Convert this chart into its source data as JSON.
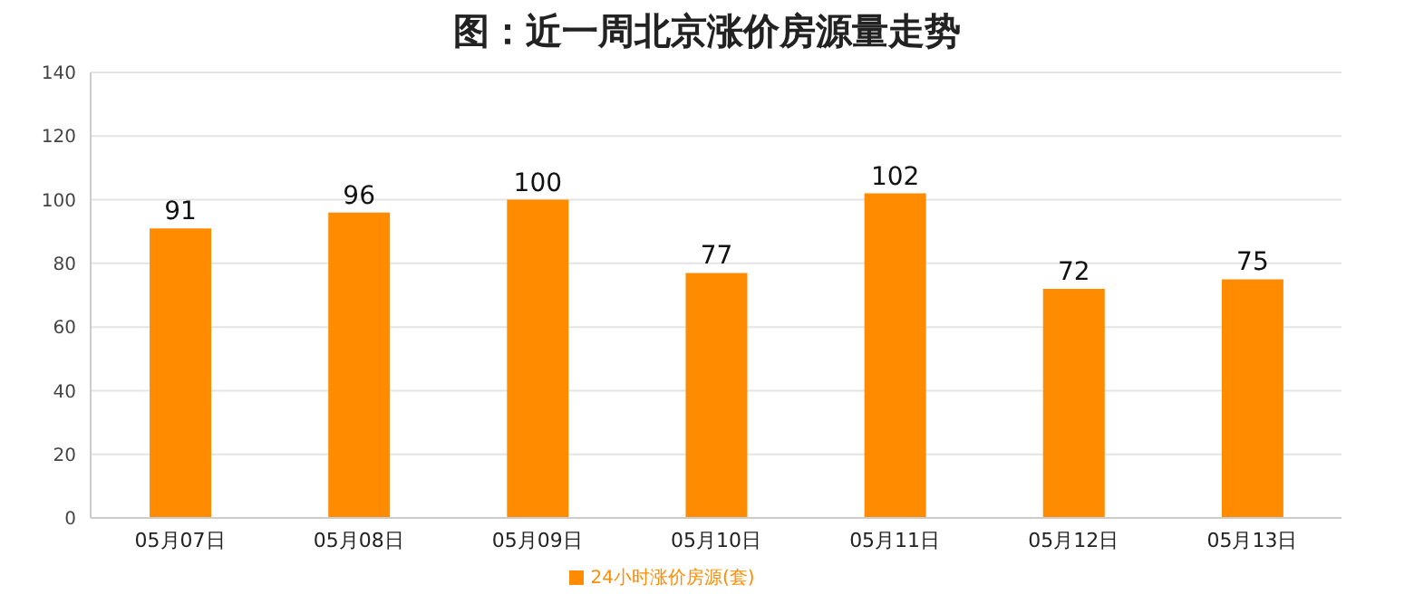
{
  "chart_data": {
    "type": "bar",
    "title": "图：近一周北京涨价房源量走势",
    "categories": [
      "05月07日",
      "05月08日",
      "05月09日",
      "05月10日",
      "05月11日",
      "05月12日",
      "05月13日"
    ],
    "series": [
      {
        "name": "24小时涨价房源(套)",
        "color": "#ff8c00",
        "values": [
          91,
          96,
          100,
          77,
          102,
          72,
          75
        ]
      }
    ],
    "ylim": [
      0,
      140
    ],
    "yticks": [
      0,
      20,
      40,
      60,
      80,
      100,
      120,
      140
    ],
    "grid": "y",
    "legend": "bottom",
    "data_labels": true
  }
}
